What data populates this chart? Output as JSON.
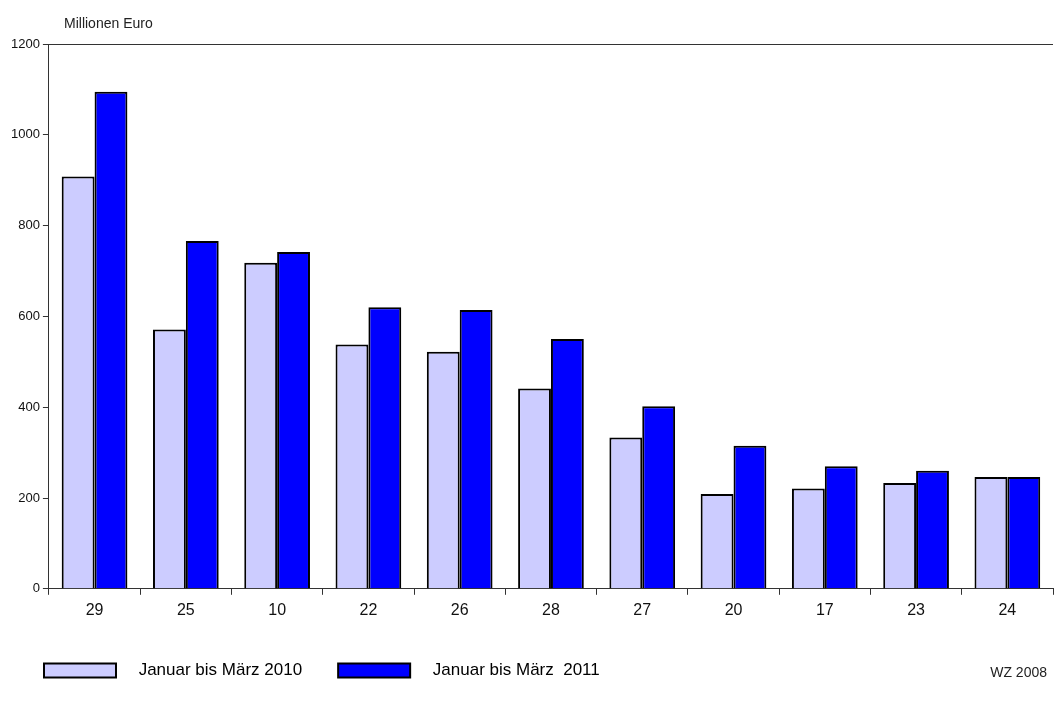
{
  "chart_data": {
    "type": "bar",
    "ylabel": "Millionen Euro",
    "categories": [
      "29",
      "25",
      "10",
      "22",
      "26",
      "28",
      "27",
      "20",
      "17",
      "23",
      "24"
    ],
    "series": [
      {
        "name": "Januar bis März 2010",
        "color": "#ccccff",
        "values": [
          908,
          571,
          718,
          538,
          522,
          441,
          333,
          209,
          221,
          233,
          246
        ]
      },
      {
        "name": "Januar bis März  2011",
        "color": "#0000ff",
        "values": [
          1095,
          766,
          742,
          620,
          614,
          550,
          402,
          315,
          270,
          260,
          246
        ]
      }
    ],
    "ylim": [
      0,
      1200
    ],
    "yticks": [
      0,
      200,
      400,
      600,
      800,
      1000,
      1200
    ],
    "grid": false,
    "legend": "bottom",
    "annotations": [
      "WZ 2008"
    ]
  }
}
